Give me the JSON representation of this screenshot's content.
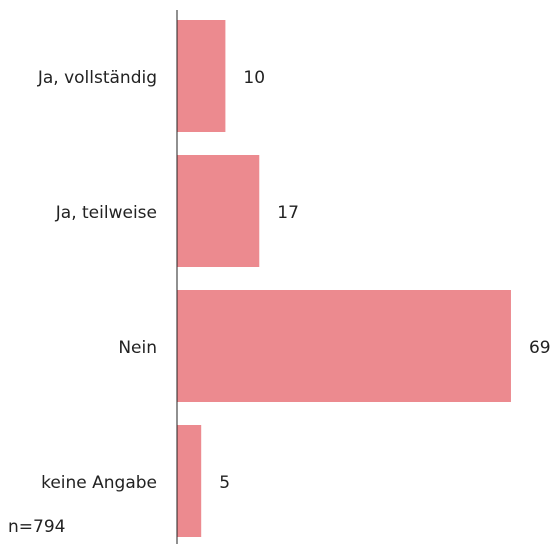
{
  "chart_data": {
    "type": "bar",
    "orientation": "horizontal",
    "categories": [
      "Ja, vollständig",
      "Ja, teilweise",
      "Nein",
      "keine Angabe"
    ],
    "values": [
      10,
      17,
      69,
      5
    ],
    "color": "#ec8a8f",
    "xlim": [
      0,
      75
    ],
    "note": "n=794"
  }
}
